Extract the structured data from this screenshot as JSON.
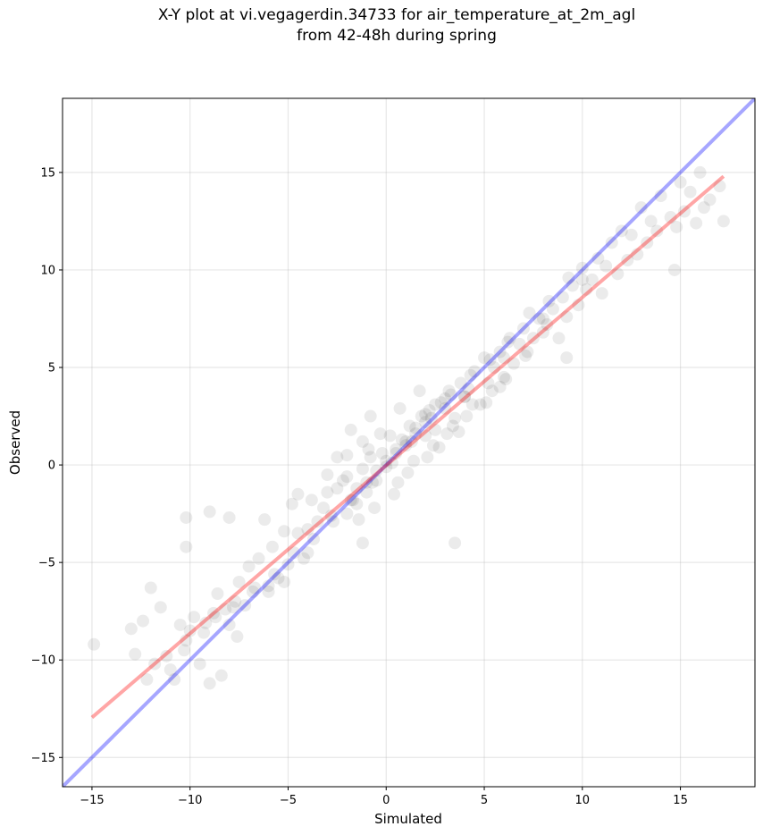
{
  "chart_data": {
    "type": "scatter",
    "title_line1": "X-Y plot at vi.vegagerdin.34733 for air_temperature_at_2m_agl",
    "title_line2": "from 42-48h during spring",
    "xlabel": "Simulated",
    "ylabel": "Observed",
    "xlim": [
      -16.5,
      18.8
    ],
    "ylim": [
      -16.5,
      18.8
    ],
    "xticks": [
      -15,
      -10,
      -5,
      0,
      5,
      10,
      15
    ],
    "yticks": [
      -15,
      -10,
      -5,
      0,
      5,
      10,
      15
    ],
    "xtick_labels": [
      "−15",
      "−10",
      "−5",
      "0",
      "5",
      "10",
      "15"
    ],
    "ytick_labels": [
      "−15",
      "−10",
      "−5",
      "0",
      "5",
      "10",
      "15"
    ],
    "grid": true,
    "point_color": "#000000",
    "point_alpha": 0.08,
    "reference_line": {
      "color": "#0000ff",
      "alpha": 0.35,
      "x": [
        -16.5,
        18.8
      ],
      "y": [
        -16.5,
        18.8
      ]
    },
    "fit_line": {
      "color": "#ff0000",
      "alpha": 0.35,
      "x": [
        -15.0,
        17.2
      ],
      "y": [
        -12.95,
        14.8
      ]
    },
    "points": {
      "x": [
        -14.9,
        -13.0,
        -12.8,
        -12.4,
        -12.0,
        -11.8,
        -11.5,
        -11.0,
        -10.8,
        -10.5,
        -10.3,
        -10.2,
        -10.0,
        -9.8,
        -9.5,
        -9.2,
        -9.0,
        -8.8,
        -8.6,
        -8.4,
        -8.0,
        -7.8,
        -7.6,
        -7.5,
        -7.2,
        -7.0,
        -6.8,
        -6.5,
        -6.2,
        -6.0,
        -5.8,
        -5.5,
        -5.2,
        -5.0,
        -4.8,
        -4.5,
        -4.2,
        -4.0,
        -3.8,
        -3.5,
        -3.2,
        -3.0,
        -2.8,
        -2.5,
        -2.2,
        -2.0,
        -1.8,
        -1.5,
        -1.2,
        -1.0,
        -0.8,
        -0.5,
        -0.2,
        0.0,
        0.2,
        0.5,
        0.8,
        1.0,
        1.2,
        1.5,
        1.8,
        2.0,
        2.2,
        2.5,
        2.8,
        3.0,
        3.2,
        3.5,
        3.8,
        4.0,
        4.2,
        4.5,
        4.8,
        5.0,
        5.2,
        5.5,
        5.8,
        6.0,
        6.2,
        6.5,
        6.8,
        7.0,
        7.2,
        7.5,
        7.8,
        8.0,
        8.2,
        8.5,
        8.8,
        9.0,
        9.2,
        9.5,
        9.8,
        10.0,
        10.2,
        10.5,
        10.8,
        11.0,
        11.2,
        11.5,
        11.8,
        12.0,
        12.3,
        12.5,
        12.8,
        13.0,
        13.3,
        13.5,
        13.8,
        14.0,
        14.5,
        14.8,
        15.0,
        15.2,
        15.5,
        15.8,
        16.0,
        16.5,
        17.0,
        17.2,
        -12.2,
        -11.2,
        -10.2,
        -9.3,
        -8.7,
        -8.2,
        -7.7,
        -6.7,
        -5.7,
        -4.7,
        -3.7,
        -2.7,
        -1.7,
        -0.7,
        0.3,
        1.3,
        2.3,
        3.3,
        4.3,
        5.3,
        6.3,
        7.3,
        8.3,
        9.3,
        -1.5,
        -1.0,
        -0.5,
        0.0,
        0.5,
        1.0,
        1.5,
        2.0,
        2.5,
        3.0,
        -2.0,
        -1.2,
        -0.3,
        0.7,
        1.7,
        2.7,
        3.7,
        -3.0,
        -2.5,
        -1.8,
        -0.9,
        0.4,
        1.1,
        2.1,
        3.1,
        4.1,
        5.1,
        6.1,
        7.1,
        -1.4,
        -0.6,
        0.6,
        1.4,
        2.4,
        3.4,
        4.4,
        5.4,
        -9.0,
        -8.0,
        -6.0,
        -4.0,
        -2.0,
        2.0,
        4.0,
        6.0,
        8.0,
        10.0,
        -10.2,
        -4.5,
        -1.2,
        5.8,
        -0.8,
        -5.2,
        3.5,
        9.2,
        14.7,
        16.2
      ],
      "y": [
        -9.2,
        -8.4,
        -9.7,
        -8.0,
        -6.3,
        -10.2,
        -7.3,
        -10.5,
        -11.0,
        -8.2,
        -9.5,
        -2.7,
        -8.5,
        -7.8,
        -10.2,
        -8.1,
        -2.4,
        -7.6,
        -6.6,
        -10.8,
        -2.7,
        -7.3,
        -8.8,
        -6.0,
        -7.2,
        -5.2,
        -6.5,
        -4.8,
        -2.8,
        -6.5,
        -4.2,
        -5.8,
        -3.4,
        -5.1,
        -2.0,
        -3.5,
        -4.8,
        -3.3,
        -1.8,
        -2.9,
        -2.2,
        -1.4,
        -2.6,
        -1.2,
        -0.8,
        -0.6,
        -1.8,
        -1.2,
        -0.2,
        -0.9,
        0.4,
        -0.3,
        0.6,
        0.2,
        1.5,
        0.8,
        1.3,
        1.0,
        2.0,
        1.6,
        2.5,
        2.2,
        2.8,
        1.8,
        3.2,
        2.9,
        3.8,
        2.4,
        4.2,
        3.5,
        3.9,
        4.8,
        3.1,
        5.5,
        4.2,
        5.0,
        5.8,
        4.5,
        6.3,
        5.2,
        6.2,
        7.0,
        5.8,
        6.5,
        7.5,
        6.8,
        7.2,
        8.0,
        6.5,
        8.6,
        7.6,
        9.2,
        8.2,
        10.1,
        9.0,
        9.5,
        10.6,
        8.8,
        10.2,
        11.4,
        9.8,
        12.0,
        10.5,
        11.8,
        10.8,
        13.2,
        11.4,
        12.5,
        12.0,
        13.8,
        12.7,
        12.2,
        14.5,
        13.0,
        14.0,
        12.4,
        15.0,
        13.6,
        14.3,
        12.5,
        -11.0,
        -9.8,
        -9.0,
        -8.6,
        -7.8,
        -7.4,
        -7.0,
        -6.3,
        -5.6,
        -4.5,
        -3.8,
        -2.9,
        -1.8,
        -0.9,
        0.1,
        1.2,
        2.4,
        3.6,
        4.6,
        5.4,
        6.5,
        7.8,
        8.4,
        9.6,
        -2.0,
        -1.4,
        -0.8,
        -0.1,
        0.6,
        1.2,
        1.9,
        2.6,
        3.1,
        3.4,
        0.5,
        1.2,
        1.6,
        2.9,
        3.8,
        0.9,
        1.7,
        -0.5,
        0.4,
        1.8,
        0.8,
        -1.5,
        -0.4,
        0.4,
        1.6,
        2.5,
        3.2,
        4.4,
        5.6,
        -2.8,
        -2.2,
        -0.9,
        0.2,
        1.0,
        2.0,
        3.1,
        3.8,
        -11.2,
        -8.2,
        -6.2,
        -4.5,
        -2.5,
        1.5,
        3.5,
        5.5,
        7.5,
        9.5,
        -4.2,
        -1.5,
        -4.0,
        4.0,
        2.5,
        -6.0,
        -4.0,
        5.5,
        10.0,
        13.2
      ]
    }
  }
}
